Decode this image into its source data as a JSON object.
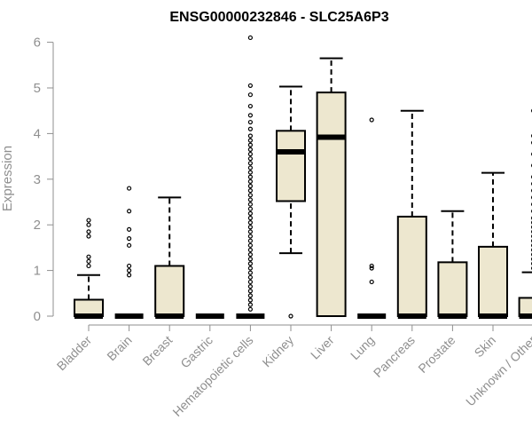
{
  "chart_data": {
    "type": "boxplot",
    "title": "ENSG00000232846 - SLC25A6P3",
    "xlabel": "",
    "ylabel": "Expression",
    "ylim": [
      0,
      6
    ],
    "yticks": [
      0,
      1,
      2,
      3,
      4,
      5,
      6
    ],
    "box_color": "#ede7cf",
    "categories": [
      "Bladder",
      "Brain",
      "Breast",
      "Gastric",
      "Hematopoietic cells",
      "Kidney",
      "Liver",
      "Lung",
      "Pancreas",
      "Prostate",
      "Skin",
      "Unknown / Other"
    ],
    "boxes": [
      {
        "name": "Bladder",
        "min": 0,
        "q1": 0,
        "median": 0,
        "q3": 0.36,
        "max": 0.9,
        "outliers": [
          1.1,
          1.2,
          1.3,
          1.75,
          1.85,
          2.0,
          2.1
        ]
      },
      {
        "name": "Brain",
        "min": 0,
        "q1": 0,
        "median": 0,
        "q3": 0,
        "max": 0,
        "outliers": [
          0.9,
          1.0,
          1.1,
          1.55,
          1.7,
          1.9,
          2.3,
          2.8
        ]
      },
      {
        "name": "Breast",
        "min": 0,
        "q1": 0,
        "median": 0,
        "q3": 1.1,
        "max": 2.6,
        "outliers": []
      },
      {
        "name": "Gastric",
        "min": 0,
        "q1": 0,
        "median": 0,
        "q3": 0,
        "max": 0,
        "outliers": []
      },
      {
        "name": "Hematopoietic cells",
        "min": 0,
        "q1": 0,
        "median": 0,
        "q3": 0,
        "max": 0,
        "outliers": [
          0.15,
          0.25,
          0.35,
          0.45,
          0.55,
          0.65,
          0.75,
          0.85,
          0.95,
          1.05,
          1.15,
          1.25,
          1.35,
          1.45,
          1.55,
          1.65,
          1.75,
          1.85,
          1.95,
          2.05,
          2.15,
          2.25,
          2.35,
          2.45,
          2.55,
          2.65,
          2.75,
          2.85,
          2.95,
          3.05,
          3.15,
          3.25,
          3.35,
          3.45,
          3.55,
          3.65,
          3.75,
          3.85,
          3.95,
          4.1,
          4.25,
          4.4,
          4.6,
          4.85,
          5.05,
          6.1
        ]
      },
      {
        "name": "Kidney",
        "min": 1.38,
        "q1": 2.52,
        "median": 3.6,
        "q3": 4.06,
        "max": 5.03,
        "outliers": [
          0
        ]
      },
      {
        "name": "Liver",
        "min": 0,
        "q1": 0,
        "median": 3.92,
        "q3": 4.9,
        "max": 5.65,
        "outliers": []
      },
      {
        "name": "Lung",
        "min": 0,
        "q1": 0,
        "median": 0,
        "q3": 0,
        "max": 0,
        "outliers": [
          0.75,
          1.05,
          1.1,
          4.3
        ]
      },
      {
        "name": "Pancreas",
        "min": 0,
        "q1": 0,
        "median": 0,
        "q3": 2.18,
        "max": 4.5,
        "outliers": []
      },
      {
        "name": "Prostate",
        "min": 0,
        "q1": 0,
        "median": 0,
        "q3": 1.18,
        "max": 2.3,
        "outliers": []
      },
      {
        "name": "Skin",
        "min": 0,
        "q1": 0,
        "median": 0,
        "q3": 1.52,
        "max": 3.14,
        "outliers": []
      },
      {
        "name": "Unknown / Other",
        "min": 0,
        "q1": 0,
        "median": 0,
        "q3": 0.4,
        "max": 0.96,
        "outliers": [
          1.05,
          1.15,
          1.25,
          1.35,
          1.45,
          1.55,
          1.65,
          1.75,
          1.85,
          1.95,
          2.05,
          2.15,
          2.3,
          2.45,
          2.6,
          2.75,
          2.9,
          3.05,
          3.3,
          3.55,
          3.8,
          3.95,
          4.5
        ]
      }
    ]
  }
}
